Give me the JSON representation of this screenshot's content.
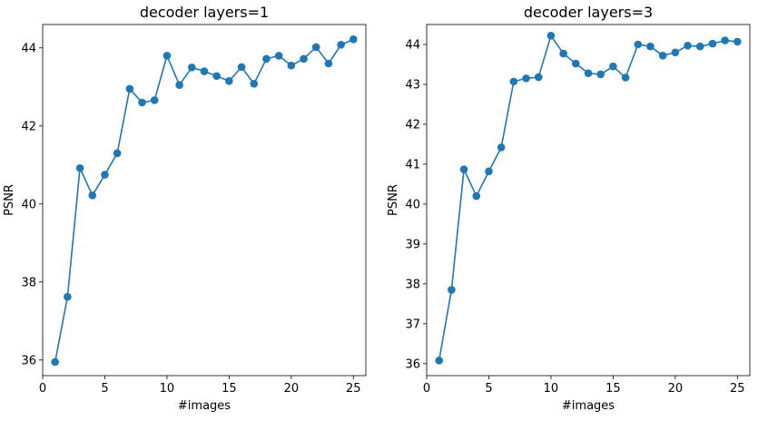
{
  "chart_data": [
    {
      "type": "line",
      "title": "decoder layers=1",
      "xlabel": "#images",
      "ylabel": "PSNR",
      "xlim": [
        0,
        26
      ],
      "ylim": [
        35.6,
        44.6
      ],
      "xticks": [
        0,
        5,
        10,
        15,
        20,
        25
      ],
      "yticks": [
        36,
        38,
        40,
        42,
        44
      ],
      "color": "#1f77b4",
      "x": [
        1,
        2,
        3,
        4,
        5,
        6,
        7,
        8,
        9,
        10,
        11,
        12,
        13,
        14,
        15,
        16,
        17,
        18,
        19,
        20,
        21,
        22,
        23,
        24,
        25
      ],
      "y": [
        35.95,
        37.62,
        40.92,
        40.22,
        40.75,
        41.3,
        42.95,
        42.6,
        42.66,
        43.8,
        43.05,
        43.5,
        43.4,
        43.28,
        43.15,
        43.51,
        43.08,
        43.72,
        43.8,
        43.55,
        43.72,
        44.02,
        43.6,
        44.08,
        44.22
      ]
    },
    {
      "type": "line",
      "title": "decoder layers=3",
      "xlabel": "#images",
      "ylabel": "PSNR",
      "xlim": [
        0,
        26
      ],
      "ylim": [
        35.7,
        44.5
      ],
      "xticks": [
        0,
        5,
        10,
        15,
        20,
        25
      ],
      "yticks": [
        36,
        37,
        38,
        39,
        40,
        41,
        42,
        43,
        44
      ],
      "color": "#1f77b4",
      "x": [
        1,
        2,
        3,
        4,
        5,
        6,
        7,
        8,
        9,
        10,
        11,
        12,
        13,
        14,
        15,
        16,
        17,
        18,
        19,
        20,
        21,
        22,
        23,
        24,
        25
      ],
      "y": [
        36.08,
        37.85,
        40.87,
        40.2,
        40.82,
        41.42,
        43.07,
        43.15,
        43.18,
        44.22,
        43.77,
        43.52,
        43.28,
        43.25,
        43.45,
        43.17,
        44.0,
        43.95,
        43.72,
        43.8,
        43.97,
        43.95,
        44.02,
        44.1,
        44.07
      ]
    }
  ]
}
